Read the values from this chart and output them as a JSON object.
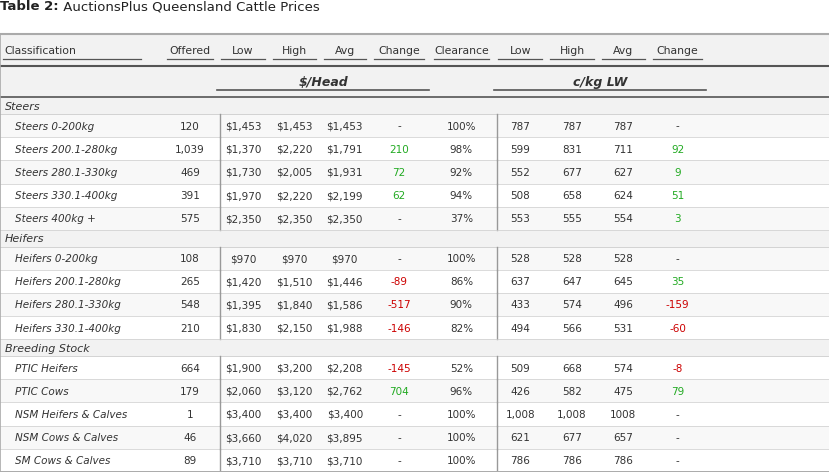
{
  "title_bold": "Table 2:",
  "title_normal": " AuctionsPlus Queensland Cattle Prices",
  "headers": [
    "Classification",
    "Offered",
    "Low",
    "High",
    "Avg",
    "Change",
    "Clearance",
    "Low",
    "High",
    "Avg",
    "Change"
  ],
  "subheader_left": "$/Head",
  "subheader_right": "c/kg LW",
  "rows": [
    {
      "label": "Steers 0-200kg",
      "offered": "120",
      "low": "$1,453",
      "high": "$1,453",
      "avg": "$1,453",
      "change": "-",
      "clearance": "100%",
      "lw_low": "787",
      "lw_high": "787",
      "lw_avg": "787",
      "lw_change": "-",
      "change_color": "#333333",
      "lw_change_color": "#333333",
      "section": "Steers"
    },
    {
      "label": "Steers 200.1-280kg",
      "offered": "1,039",
      "low": "$1,370",
      "high": "$2,220",
      "avg": "$1,791",
      "change": "210",
      "clearance": "98%",
      "lw_low": "599",
      "lw_high": "831",
      "lw_avg": "711",
      "lw_change": "92",
      "change_color": "#22aa22",
      "lw_change_color": "#22aa22",
      "section": "Steers"
    },
    {
      "label": "Steers 280.1-330kg",
      "offered": "469",
      "low": "$1,730",
      "high": "$2,005",
      "avg": "$1,931",
      "change": "72",
      "clearance": "92%",
      "lw_low": "552",
      "lw_high": "677",
      "lw_avg": "627",
      "lw_change": "9",
      "change_color": "#22aa22",
      "lw_change_color": "#22aa22",
      "section": "Steers"
    },
    {
      "label": "Steers 330.1-400kg",
      "offered": "391",
      "low": "$1,970",
      "high": "$2,220",
      "avg": "$2,199",
      "change": "62",
      "clearance": "94%",
      "lw_low": "508",
      "lw_high": "658",
      "lw_avg": "624",
      "lw_change": "51",
      "change_color": "#22aa22",
      "lw_change_color": "#22aa22",
      "section": "Steers"
    },
    {
      "label": "Steers 400kg +",
      "offered": "575",
      "low": "$2,350",
      "high": "$2,350",
      "avg": "$2,350",
      "change": "-",
      "clearance": "37%",
      "lw_low": "553",
      "lw_high": "555",
      "lw_avg": "554",
      "lw_change": "3",
      "change_color": "#333333",
      "lw_change_color": "#22aa22",
      "section": "Steers"
    },
    {
      "label": "Heifers 0-200kg",
      "offered": "108",
      "low": "$970",
      "high": "$970",
      "avg": "$970",
      "change": "-",
      "clearance": "100%",
      "lw_low": "528",
      "lw_high": "528",
      "lw_avg": "528",
      "lw_change": "-",
      "change_color": "#333333",
      "lw_change_color": "#333333",
      "section": "Heifers"
    },
    {
      "label": "Heifers 200.1-280kg",
      "offered": "265",
      "low": "$1,420",
      "high": "$1,510",
      "avg": "$1,446",
      "change": "-89",
      "clearance": "86%",
      "lw_low": "637",
      "lw_high": "647",
      "lw_avg": "645",
      "lw_change": "35",
      "change_color": "#cc0000",
      "lw_change_color": "#22aa22",
      "section": "Heifers"
    },
    {
      "label": "Heifers 280.1-330kg",
      "offered": "548",
      "low": "$1,395",
      "high": "$1,840",
      "avg": "$1,586",
      "change": "-517",
      "clearance": "90%",
      "lw_low": "433",
      "lw_high": "574",
      "lw_avg": "496",
      "lw_change": "-159",
      "change_color": "#cc0000",
      "lw_change_color": "#cc0000",
      "section": "Heifers"
    },
    {
      "label": "Heifers 330.1-400kg",
      "offered": "210",
      "low": "$1,830",
      "high": "$2,150",
      "avg": "$1,988",
      "change": "-146",
      "clearance": "82%",
      "lw_low": "494",
      "lw_high": "566",
      "lw_avg": "531",
      "lw_change": "-60",
      "change_color": "#cc0000",
      "lw_change_color": "#cc0000",
      "section": "Heifers"
    },
    {
      "label": "PTIC Heifers",
      "offered": "664",
      "low": "$1,900",
      "high": "$3,200",
      "avg": "$2,208",
      "change": "-145",
      "clearance": "52%",
      "lw_low": "509",
      "lw_high": "668",
      "lw_avg": "574",
      "lw_change": "-8",
      "change_color": "#cc0000",
      "lw_change_color": "#cc0000",
      "section": "Breeding Stock"
    },
    {
      "label": "PTIC Cows",
      "offered": "179",
      "low": "$2,060",
      "high": "$3,120",
      "avg": "$2,762",
      "change": "704",
      "clearance": "96%",
      "lw_low": "426",
      "lw_high": "582",
      "lw_avg": "475",
      "lw_change": "79",
      "change_color": "#22aa22",
      "lw_change_color": "#22aa22",
      "section": "Breeding Stock"
    },
    {
      "label": "NSM Heifers & Calves",
      "offered": "1",
      "low": "$3,400",
      "high": "$3,400",
      "avg": "$3,400",
      "change": "-",
      "clearance": "100%",
      "lw_low": "1,008",
      "lw_high": "1,008",
      "lw_avg": "1008",
      "lw_change": "-",
      "change_color": "#333333",
      "lw_change_color": "#333333",
      "section": "Breeding Stock"
    },
    {
      "label": "NSM Cows & Calves",
      "offered": "46",
      "low": "$3,660",
      "high": "$4,020",
      "avg": "$3,895",
      "change": "-",
      "clearance": "100%",
      "lw_low": "621",
      "lw_high": "677",
      "lw_avg": "657",
      "lw_change": "-",
      "change_color": "#333333",
      "lw_change_color": "#333333",
      "section": "Breeding Stock"
    },
    {
      "label": "SM Cows & Calves",
      "offered": "89",
      "low": "$3,710",
      "high": "$3,710",
      "avg": "$3,710",
      "change": "-",
      "clearance": "100%",
      "lw_low": "786",
      "lw_high": "786",
      "lw_avg": "786",
      "lw_change": "-",
      "change_color": "#333333",
      "lw_change_color": "#333333",
      "section": "Breeding Stock"
    }
  ],
  "bg_color": "#ffffff",
  "table_bg": "#ffffff",
  "outer_border_color": "#aaaaaa",
  "inner_line_color": "#bbbbbb",
  "header_line_color": "#555555",
  "text_color": "#333333",
  "section_bg": "#f2f2f2",
  "data_row_bg1": "#ffffff",
  "data_row_bg2": "#f8f8f8"
}
